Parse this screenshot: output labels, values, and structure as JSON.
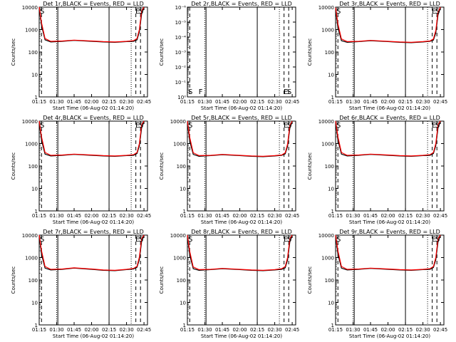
{
  "page": {
    "x_ticks": [
      "01:15",
      "01:30",
      "01:45",
      "02:00",
      "02:15",
      "02:30",
      "02:45"
    ],
    "xlabel": "Start Time (06-Aug-02 01:14:20)",
    "ylabel": "Counts/sec",
    "colors": {
      "events": "#000000",
      "lld": "#ff0000",
      "axes": "#000000"
    }
  },
  "chart_data": [
    {
      "type": "line",
      "title": "Det 1r,BLACK = Events, RED = LLD",
      "xlabel": "Start Time (06-Aug-02 01:14:20)",
      "ylabel": "Counts/sec",
      "scale": "log",
      "ylim": [
        1,
        10000
      ],
      "y_ticks": [
        "1",
        "10",
        "100",
        "1000",
        "10000"
      ],
      "x": [
        "01:15",
        "01:17",
        "01:20",
        "01:25",
        "01:35",
        "01:45",
        "02:00",
        "02:10",
        "02:20",
        "02:30",
        "02:36",
        "02:39",
        "02:41",
        "02:43",
        "02:45"
      ],
      "series": [
        {
          "name": "BLACK = Events",
          "color": "#000000",
          "values": [
            9000,
            1500,
            350,
            280,
            300,
            330,
            300,
            280,
            270,
            290,
            300,
            350,
            800,
            5000,
            9500
          ]
        },
        {
          "name": "RED = LLD",
          "color": "#ff0000",
          "values": [
            10000,
            2000,
            400,
            300,
            310,
            340,
            310,
            290,
            280,
            300,
            320,
            400,
            1000,
            7000,
            10000
          ]
        }
      ],
      "markers": [
        "S",
        "E",
        "S"
      ]
    },
    {
      "type": "line",
      "title": "Det 2r,BLACK = Events, RED = LLD",
      "xlabel": "Start Time (06-Aug-02 01:14:20)",
      "ylabel": "Counts/sec",
      "scale": "log",
      "ylim": [
        1,
        10000000
      ],
      "y_ticks": [
        "10⁰",
        "10⁻¹",
        "10⁻²",
        "10⁻³",
        "10⁻⁴",
        "10⁻⁵",
        "10⁻⁶"
      ],
      "series": [],
      "markers": [
        "S",
        "F",
        "E",
        "S"
      ]
    },
    {
      "type": "line",
      "title": "Det 3r,BLACK = Events, RED = LLD",
      "xlabel": "Start Time (06-Aug-02 01:14:20)",
      "ylabel": "Counts/sec",
      "scale": "log",
      "ylim": [
        1,
        10000
      ],
      "y_ticks": [
        "1",
        "10",
        "100",
        "1000",
        "10000"
      ],
      "x": [
        "01:15",
        "01:17",
        "01:20",
        "01:25",
        "01:35",
        "01:45",
        "02:00",
        "02:10",
        "02:20",
        "02:30",
        "02:36",
        "02:39",
        "02:41",
        "02:43",
        "02:45"
      ],
      "series": [
        {
          "name": "BLACK = Events",
          "color": "#000000",
          "values": [
            8000,
            1200,
            320,
            270,
            290,
            320,
            290,
            270,
            260,
            280,
            300,
            340,
            700,
            4500,
            9000
          ]
        },
        {
          "name": "RED = LLD",
          "color": "#ff0000",
          "values": [
            9500,
            1800,
            380,
            290,
            300,
            330,
            300,
            280,
            270,
            290,
            310,
            380,
            900,
            6000,
            10000
          ]
        }
      ],
      "markers": [
        "S",
        "E",
        "S"
      ]
    },
    {
      "type": "line",
      "title": "Det 4r,BLACK = Events, RED = LLD",
      "xlabel": "Start Time (06-Aug-02 01:14:20)",
      "ylabel": "Counts/sec",
      "scale": "log",
      "ylim": [
        1,
        10000
      ],
      "y_ticks": [
        "1",
        "10",
        "100",
        "1000",
        "10000"
      ],
      "x": [
        "01:15",
        "01:17",
        "01:20",
        "01:25",
        "01:35",
        "01:45",
        "02:00",
        "02:10",
        "02:20",
        "02:30",
        "02:36",
        "02:39",
        "02:41",
        "02:43",
        "02:45"
      ],
      "series": [
        {
          "name": "BLACK = Events",
          "color": "#000000",
          "values": [
            9000,
            1400,
            340,
            280,
            300,
            330,
            300,
            280,
            270,
            290,
            300,
            360,
            800,
            5000,
            9500
          ]
        },
        {
          "name": "RED = LLD",
          "color": "#ff0000",
          "values": [
            10000,
            2000,
            400,
            300,
            310,
            340,
            310,
            290,
            280,
            300,
            320,
            400,
            1000,
            7000,
            10000
          ]
        }
      ],
      "markers": [
        "S",
        "E",
        "S"
      ]
    },
    {
      "type": "line",
      "title": "Det 5r,BLACK = Events, RED = LLD",
      "xlabel": "Start Time (06-Aug-02 01:14:20)",
      "ylabel": "Counts/sec",
      "scale": "log",
      "ylim": [
        1,
        10000
      ],
      "y_ticks": [
        "1",
        "10",
        "100",
        "1000",
        "10000"
      ],
      "x": [
        "01:15",
        "01:17",
        "01:20",
        "01:25",
        "01:35",
        "01:45",
        "02:00",
        "02:10",
        "02:20",
        "02:30",
        "02:36",
        "02:39",
        "02:41",
        "02:43",
        "02:45"
      ],
      "series": [
        {
          "name": "BLACK = Events",
          "color": "#000000",
          "values": [
            9000,
            1300,
            330,
            270,
            290,
            320,
            290,
            270,
            260,
            280,
            300,
            350,
            750,
            4800,
            9500
          ]
        },
        {
          "name": "RED = LLD",
          "color": "#ff0000",
          "values": [
            10000,
            1900,
            390,
            290,
            300,
            330,
            300,
            280,
            270,
            290,
            310,
            390,
            950,
            6500,
            10000
          ]
        }
      ],
      "markers": [
        "S",
        "E",
        "S"
      ]
    },
    {
      "type": "line",
      "title": "Det 6r,BLACK = Events, RED = LLD",
      "xlabel": "Start Time (06-Aug-02 01:14:20)",
      "ylabel": "Counts/sec",
      "scale": "log",
      "ylim": [
        1,
        10000
      ],
      "y_ticks": [
        "1",
        "10",
        "100",
        "1000",
        "10000"
      ],
      "x": [
        "01:15",
        "01:17",
        "01:20",
        "01:25",
        "01:35",
        "01:45",
        "02:00",
        "02:10",
        "02:20",
        "02:30",
        "02:36",
        "02:39",
        "02:41",
        "02:43",
        "02:45"
      ],
      "series": [
        {
          "name": "BLACK = Events",
          "color": "#000000",
          "values": [
            9000,
            1400,
            340,
            280,
            300,
            330,
            300,
            280,
            270,
            290,
            300,
            360,
            800,
            5000,
            9500
          ]
        },
        {
          "name": "RED = LLD",
          "color": "#ff0000",
          "values": [
            10000,
            2000,
            400,
            300,
            310,
            340,
            310,
            290,
            280,
            300,
            320,
            400,
            1000,
            7000,
            10000
          ]
        }
      ],
      "markers": [
        "S",
        "E",
        "S"
      ]
    },
    {
      "type": "line",
      "title": "Det 7r,BLACK = Events, RED = LLD",
      "xlabel": "Start Time (06-Aug-02 01:14:20)",
      "ylabel": "Counts/sec",
      "scale": "log",
      "ylim": [
        1,
        10000
      ],
      "y_ticks": [
        "1",
        "10",
        "100",
        "1000",
        "10000"
      ],
      "x": [
        "01:15",
        "01:17",
        "01:20",
        "01:25",
        "01:35",
        "01:45",
        "02:00",
        "02:10",
        "02:20",
        "02:30",
        "02:36",
        "02:39",
        "02:41",
        "02:43",
        "02:45"
      ],
      "series": [
        {
          "name": "BLACK = Events",
          "color": "#000000",
          "values": [
            9000,
            1400,
            340,
            280,
            300,
            340,
            300,
            270,
            260,
            290,
            310,
            370,
            820,
            5200,
            9500
          ]
        },
        {
          "name": "RED = LLD",
          "color": "#ff0000",
          "values": [
            10000,
            2000,
            400,
            300,
            310,
            350,
            310,
            280,
            270,
            300,
            330,
            410,
            1050,
            7000,
            10000
          ]
        }
      ],
      "markers": [
        "S",
        "E",
        "S"
      ]
    },
    {
      "type": "line",
      "title": "Det 8r,BLACK = Events, RED = LLD",
      "xlabel": "Start Time (06-Aug-02 01:14:20)",
      "ylabel": "Counts/sec",
      "scale": "log",
      "ylim": [
        1,
        10000
      ],
      "y_ticks": [
        "1",
        "10",
        "100",
        "1000",
        "10000"
      ],
      "x": [
        "01:15",
        "01:17",
        "01:20",
        "01:25",
        "01:35",
        "01:45",
        "02:00",
        "02:10",
        "02:20",
        "02:30",
        "02:36",
        "02:39",
        "02:41",
        "02:43",
        "02:45"
      ],
      "series": [
        {
          "name": "BLACK = Events",
          "color": "#000000",
          "values": [
            9000,
            1300,
            320,
            270,
            290,
            320,
            290,
            270,
            260,
            280,
            300,
            350,
            780,
            5000,
            9500
          ]
        },
        {
          "name": "RED = LLD",
          "color": "#ff0000",
          "values": [
            10000,
            1900,
            380,
            290,
            300,
            330,
            300,
            280,
            270,
            290,
            320,
            400,
            1000,
            7000,
            10000
          ]
        }
      ],
      "markers": [
        "S",
        "E",
        "S"
      ]
    },
    {
      "type": "line",
      "title": "Det 9r,BLACK = Events, RED = LLD",
      "xlabel": "Start Time (06-Aug-02 01:14:20)",
      "ylabel": "Counts/sec",
      "scale": "log",
      "ylim": [
        1,
        10000
      ],
      "y_ticks": [
        "1",
        "10",
        "100",
        "1000",
        "10000"
      ],
      "x": [
        "01:15",
        "01:17",
        "01:20",
        "01:25",
        "01:35",
        "01:45",
        "02:00",
        "02:10",
        "02:20",
        "02:30",
        "02:36",
        "02:39",
        "02:41",
        "02:43",
        "02:45"
      ],
      "series": [
        {
          "name": "BLACK = Events",
          "color": "#000000",
          "values": [
            9000,
            1400,
            340,
            280,
            300,
            330,
            300,
            280,
            270,
            290,
            300,
            360,
            800,
            5000,
            9500
          ]
        },
        {
          "name": "RED = LLD",
          "color": "#ff0000",
          "values": [
            10000,
            2000,
            400,
            300,
            310,
            340,
            310,
            290,
            280,
            300,
            320,
            400,
            1000,
            7000,
            10000
          ]
        }
      ],
      "markers": [
        "S",
        "E",
        "S"
      ]
    }
  ]
}
